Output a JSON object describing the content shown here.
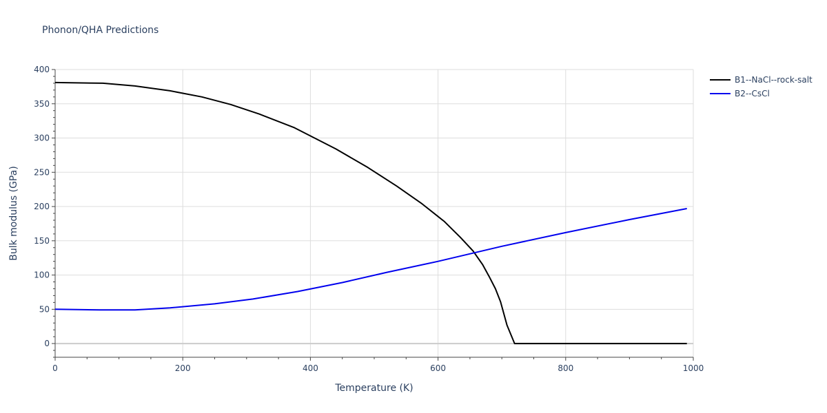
{
  "chart_data": {
    "type": "line",
    "title": "Phonon/QHA Predictions",
    "xlabel": "Temperature (K)",
    "ylabel": "Bulk modulus (GPa)",
    "xlim": [
      0,
      1000
    ],
    "ylim": [
      -20,
      400
    ],
    "x_ticks": [
      0,
      200,
      400,
      600,
      800,
      1000
    ],
    "y_ticks": [
      0,
      50,
      100,
      150,
      200,
      250,
      300,
      350,
      400
    ],
    "grid": true,
    "legend_position": "top-right",
    "series": [
      {
        "name": "B1--NaCl--rock-salt",
        "color": "#000000",
        "x": [
          0,
          75,
          125,
          180,
          230,
          275,
          320,
          375,
          440,
          490,
          535,
          575,
          610,
          635,
          655,
          670,
          680,
          690,
          698,
          708,
          720,
          800,
          900,
          990
        ],
        "y": [
          381,
          380,
          376,
          369,
          360,
          349,
          335,
          315,
          284,
          257,
          230,
          204,
          178,
          155,
          135,
          115,
          98,
          80,
          61,
          27,
          0,
          0,
          0,
          0
        ]
      },
      {
        "name": "B2--CsCl",
        "color": "#0000ee",
        "x": [
          0,
          70,
          125,
          180,
          250,
          310,
          380,
          450,
          520,
          600,
          700,
          800,
          900,
          990
        ],
        "y": [
          50,
          49,
          49,
          52,
          58,
          65,
          76,
          89,
          104,
          120,
          142,
          162,
          181,
          197
        ]
      }
    ]
  }
}
